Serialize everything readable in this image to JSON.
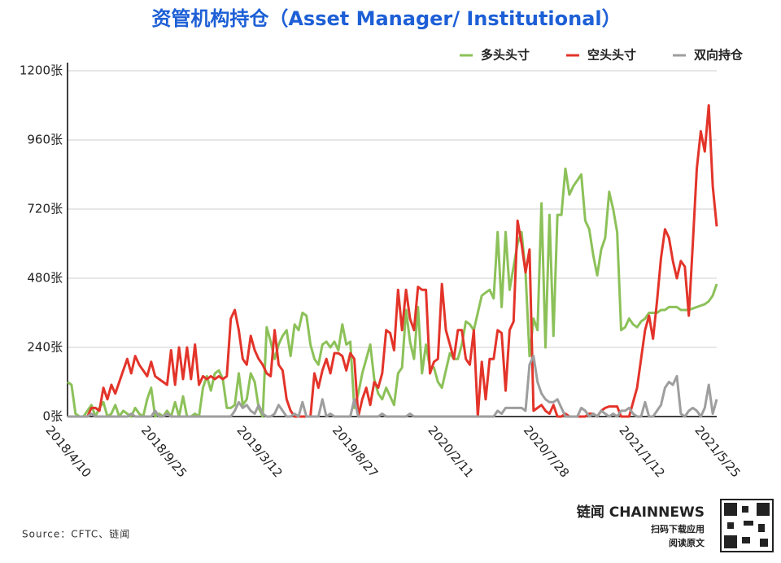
{
  "chart_data": {
    "type": "line",
    "title": "资管机构持仓（Asset Manager/ Institutional）",
    "source": "Source：CFTC、链闻",
    "brand": "链闻 CHAINNEWS",
    "brand_lines": [
      "扫码下载应用",
      "阅读原文"
    ],
    "legend": "top-right",
    "grid": true,
    "ylim": [
      0,
      1200
    ],
    "yticks": [
      {
        "value": 0,
        "label": "0张"
      },
      {
        "value": 240,
        "label": "240张"
      },
      {
        "value": 480,
        "label": "480张"
      },
      {
        "value": 720,
        "label": "720张"
      },
      {
        "value": 960,
        "label": "960张"
      },
      {
        "value": 1200,
        "label": "1200张"
      }
    ],
    "categories": [
      "2018/4/10",
      null,
      null,
      null,
      null,
      null,
      null,
      null,
      null,
      null,
      null,
      null,
      null,
      null,
      null,
      null,
      null,
      null,
      null,
      null,
      null,
      null,
      null,
      null,
      "2018/9/25",
      null,
      null,
      null,
      null,
      null,
      null,
      null,
      null,
      null,
      null,
      null,
      null,
      null,
      null,
      null,
      null,
      null,
      null,
      null,
      null,
      null,
      null,
      null,
      "2019/3/12",
      null,
      null,
      null,
      null,
      null,
      null,
      null,
      null,
      null,
      null,
      null,
      null,
      null,
      null,
      null,
      null,
      null,
      null,
      null,
      null,
      null,
      null,
      null,
      "2019/8/27",
      null,
      null,
      null,
      null,
      null,
      null,
      null,
      null,
      null,
      null,
      null,
      null,
      null,
      null,
      null,
      null,
      null,
      null,
      null,
      null,
      null,
      null,
      null,
      "2020/2/11",
      null,
      null,
      null,
      null,
      null,
      null,
      null,
      null,
      null,
      null,
      null,
      null,
      null,
      null,
      null,
      null,
      null,
      null,
      null,
      null,
      null,
      null,
      null,
      "2020/7/28",
      null,
      null,
      null,
      null,
      null,
      null,
      null,
      null,
      null,
      null,
      null,
      null,
      null,
      null,
      null,
      null,
      null,
      null,
      null,
      null,
      null,
      null,
      null,
      "2021/1/12",
      null,
      null,
      null,
      null,
      null,
      null,
      null,
      null,
      null,
      null,
      null,
      null,
      null,
      null,
      null,
      null,
      null,
      null,
      "2021/5/25"
    ],
    "series": [
      {
        "name": "多头头寸",
        "color": "#8cc159",
        "values": [
          120,
          110,
          10,
          0,
          0,
          20,
          40,
          0,
          30,
          50,
          0,
          10,
          40,
          0,
          20,
          10,
          0,
          30,
          10,
          0,
          60,
          100,
          0,
          10,
          0,
          20,
          0,
          50,
          0,
          70,
          0,
          0,
          10,
          0,
          100,
          140,
          90,
          150,
          160,
          130,
          30,
          30,
          40,
          150,
          40,
          60,
          150,
          120,
          30,
          0,
          310,
          260,
          200,
          250,
          280,
          300,
          210,
          320,
          300,
          360,
          350,
          250,
          200,
          180,
          250,
          260,
          240,
          260,
          230,
          320,
          250,
          260,
          30,
          80,
          150,
          200,
          250,
          130,
          80,
          60,
          100,
          70,
          40,
          150,
          170,
          370,
          260,
          200,
          380,
          150,
          250,
          170,
          170,
          120,
          100,
          160,
          220,
          200,
          200,
          250,
          330,
          320,
          300,
          360,
          420,
          430,
          440,
          410,
          640,
          380,
          640,
          440,
          520,
          600,
          640,
          500,
          210,
          340,
          300,
          740,
          240,
          700,
          280,
          700,
          700,
          860,
          770,
          800,
          820,
          840,
          680,
          650,
          560,
          490,
          580,
          620,
          780,
          720,
          640,
          300,
          310,
          340,
          320,
          310,
          330,
          340,
          360,
          360,
          360,
          370,
          370,
          380,
          380,
          380,
          370,
          370,
          370,
          375,
          380,
          385,
          390,
          400,
          420,
          460
        ]
      },
      {
        "name": "空头头寸",
        "color": "#e3342a",
        "values": [
          0,
          0,
          0,
          0,
          0,
          0,
          30,
          30,
          20,
          100,
          60,
          110,
          80,
          120,
          160,
          200,
          150,
          210,
          180,
          160,
          140,
          190,
          140,
          130,
          120,
          110,
          230,
          110,
          240,
          130,
          240,
          130,
          250,
          110,
          140,
          130,
          140,
          130,
          140,
          130,
          140,
          340,
          370,
          300,
          200,
          180,
          280,
          230,
          200,
          180,
          150,
          140,
          300,
          180,
          160,
          60,
          20,
          0,
          0,
          0,
          0,
          0,
          150,
          100,
          160,
          200,
          150,
          220,
          220,
          210,
          160,
          220,
          200,
          0,
          60,
          100,
          40,
          120,
          100,
          150,
          300,
          290,
          230,
          440,
          300,
          440,
          340,
          300,
          450,
          440,
          440,
          150,
          190,
          200,
          460,
          300,
          250,
          200,
          300,
          300,
          200,
          180,
          300,
          0,
          190,
          60,
          200,
          200,
          300,
          290,
          90,
          300,
          330,
          680,
          600,
          500,
          580,
          20,
          30,
          40,
          20,
          10,
          40,
          0,
          0,
          10,
          0,
          0,
          0,
          0,
          0,
          10,
          10,
          0,
          20,
          30,
          35,
          35,
          35,
          0,
          0,
          0,
          50,
          100,
          200,
          300,
          350,
          270,
          400,
          550,
          650,
          620,
          540,
          480,
          540,
          520,
          350,
          600,
          860,
          990,
          920,
          1080,
          800,
          660
        ]
      },
      {
        "name": "双向持仓",
        "color": "#9e9e9e",
        "values": [
          0,
          0,
          0,
          0,
          0,
          0,
          10,
          0,
          0,
          0,
          0,
          0,
          0,
          0,
          0,
          0,
          10,
          0,
          0,
          0,
          0,
          0,
          20,
          0,
          0,
          10,
          0,
          0,
          0,
          0,
          0,
          0,
          0,
          0,
          0,
          0,
          0,
          0,
          0,
          0,
          0,
          0,
          20,
          50,
          30,
          40,
          20,
          10,
          40,
          10,
          0,
          0,
          10,
          40,
          20,
          0,
          0,
          10,
          0,
          50,
          0,
          0,
          0,
          0,
          60,
          0,
          10,
          0,
          0,
          0,
          0,
          0,
          60,
          0,
          0,
          0,
          0,
          0,
          0,
          10,
          0,
          0,
          0,
          0,
          0,
          0,
          10,
          0,
          0,
          0,
          0,
          0,
          0,
          0,
          0,
          0,
          0,
          0,
          0,
          0,
          0,
          0,
          0,
          0,
          0,
          0,
          0,
          0,
          20,
          10,
          30,
          30,
          30,
          30,
          30,
          20,
          180,
          210,
          120,
          80,
          60,
          50,
          50,
          60,
          30,
          0,
          0,
          0,
          0,
          30,
          20,
          0,
          10,
          0,
          20,
          10,
          0,
          10,
          0,
          20,
          20,
          30,
          10,
          0,
          0,
          50,
          0,
          0,
          20,
          40,
          100,
          120,
          110,
          140,
          10,
          0,
          20,
          30,
          20,
          0,
          30,
          110,
          10,
          60
        ]
      }
    ]
  }
}
